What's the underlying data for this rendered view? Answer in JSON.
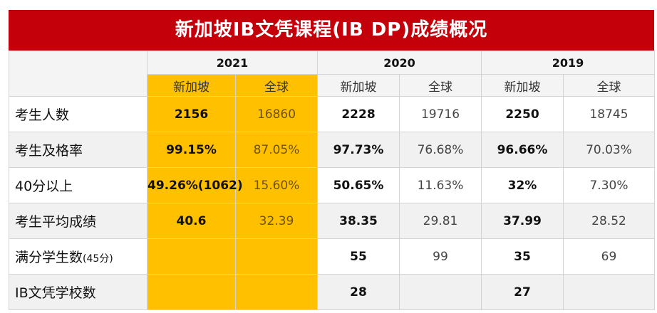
{
  "title": "新加坡IB文凭课程(IB DP)成绩概况",
  "years": [
    "2021",
    "2020",
    "2019"
  ],
  "regions": {
    "sg": "新加坡",
    "global": "全球"
  },
  "rows": [
    {
      "label": "考生人数",
      "label_note": "",
      "values": [
        "2156",
        "16860",
        "2228",
        "19716",
        "2250",
        "18745"
      ]
    },
    {
      "label": "考生及格率",
      "label_note": "",
      "values": [
        "99.15%",
        "87.05%",
        "97.73%",
        "76.68%",
        "96.66%",
        "70.03%"
      ]
    },
    {
      "label": "40分以上",
      "label_note": "",
      "values": [
        "49.26%(1062)",
        "15.60%",
        "50.65%",
        "11.63%",
        "32%",
        "7.30%"
      ]
    },
    {
      "label": "考生平均成绩",
      "label_note": "",
      "values": [
        "40.6",
        "32.39",
        "38.35",
        "29.81",
        "37.99",
        "28.52"
      ]
    },
    {
      "label": "满分学生数",
      "label_note": "(45分)",
      "values": [
        "",
        "",
        "55",
        "99",
        "35",
        "69"
      ]
    },
    {
      "label": "IB文凭学校数",
      "label_note": "",
      "values": [
        "",
        "",
        "28",
        "",
        "27",
        ""
      ]
    }
  ],
  "colors": {
    "title_bg": "#c4000b",
    "highlight": "#ffc000"
  }
}
